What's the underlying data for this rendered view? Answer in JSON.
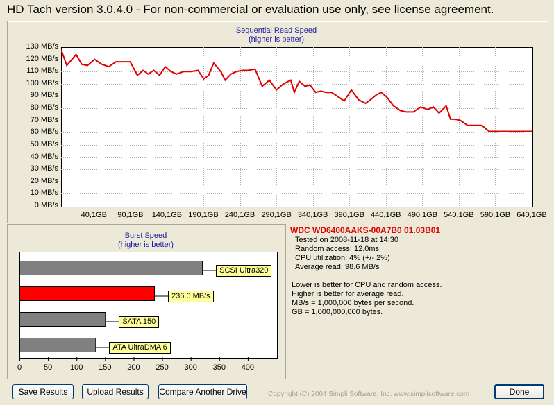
{
  "window": {
    "title": "HD Tach version 3.0.4.0  - For non-commercial or evaluation use only, see license agreement."
  },
  "colors": {
    "read_line": "#e00000",
    "bar_gray": "#808080",
    "bar_red": "#ff0000",
    "title_blue": "#1a1aa6",
    "label_bg": "#ffff99"
  },
  "chart_data": [
    {
      "type": "line",
      "title": "Sequential Read Speed",
      "subtitle": "(higher is better)",
      "ylim": [
        0,
        130
      ],
      "yticks": [
        "130 MB/s",
        "120 MB/s",
        "110 MB/s",
        "100 MB/s",
        "90 MB/s",
        "80 MB/s",
        "70 MB/s",
        "60 MB/s",
        "50 MB/s",
        "40 MB/s",
        "30 MB/s",
        "20 MB/s",
        "10 MB/s",
        "0 MB/s"
      ],
      "xlim": [
        0,
        660
      ],
      "xticks": [
        "40,1GB",
        "90,1GB",
        "140,1GB",
        "190,1GB",
        "240,1GB",
        "290,1GB",
        "340,1GB",
        "390,1GB",
        "440,1GB",
        "490,1GB",
        "540,1GB",
        "590,1GB",
        "640,1GB"
      ],
      "grid": true,
      "series": [
        {
          "x": [
            0,
            8,
            21,
            29,
            37,
            47,
            57,
            67,
            77,
            87,
            97,
            107,
            115,
            122,
            130,
            138,
            146,
            154,
            162,
            172,
            182,
            192,
            200,
            207,
            214,
            224,
            230,
            238,
            246,
            254,
            262,
            272,
            282,
            292,
            302,
            312,
            322,
            327,
            334,
            342,
            349,
            357,
            364,
            372,
            379,
            387,
            397,
            407,
            417,
            427,
            434,
            442,
            449,
            457,
            466,
            476,
            484,
            494,
            504,
            514,
            522,
            530,
            540,
            546,
            552,
            560,
            570,
            580,
            590,
            600,
            610,
            620,
            630,
            640,
            650,
            660
          ],
          "y": [
            128,
            115,
            124,
            116,
            115,
            120,
            116,
            114,
            118,
            118,
            118,
            107,
            111,
            108,
            111,
            107,
            114,
            110,
            108,
            110,
            110,
            111,
            104,
            107,
            117,
            110,
            103,
            108,
            110,
            111,
            111,
            112,
            98,
            103,
            95,
            100,
            103,
            93,
            102,
            98,
            99,
            93,
            94,
            93,
            93,
            90,
            86,
            95,
            87,
            84,
            87,
            91,
            93,
            89,
            82,
            78,
            77,
            77,
            81,
            79,
            81,
            76,
            82,
            71,
            71,
            70,
            66,
            66,
            66,
            61,
            61,
            61,
            61,
            61,
            61,
            61
          ]
        }
      ]
    },
    {
      "type": "bar",
      "title": "Burst Speed",
      "subtitle": "(higher is better)",
      "xlim": [
        0,
        450
      ],
      "xticks": [
        "0",
        "50",
        "100",
        "150",
        "200",
        "250",
        "300",
        "350",
        "400"
      ],
      "categories": [
        "SCSI Ultra320",
        "236.0 MB/s",
        "SATA 150",
        "ATA UltraDMA 6"
      ],
      "values": [
        320,
        236,
        150,
        133
      ]
    }
  ],
  "info": {
    "drive": "WDC WD6400AAKS-00A7B0 01.03B01",
    "lines": [
      "Tested on 2008-11-18 at 14:30",
      "Random access: 12.0ms",
      "CPU utilization: 4% (+/- 2%)",
      "Average read: 98.6 MB/s"
    ],
    "notes": [
      "Lower is better for CPU and random access.",
      "Higher is better for average read.",
      "MB/s = 1,000,000 bytes per second.",
      "GB = 1,000,000,000 bytes."
    ]
  },
  "buttons": {
    "save": "Save Results",
    "upload": "Upload Results",
    "compare": "Compare Another Drive",
    "done": "Done"
  },
  "footer": {
    "copyright": "Copyright (C) 2004 Simpli Software, Inc. www.simplisoftware.com"
  }
}
